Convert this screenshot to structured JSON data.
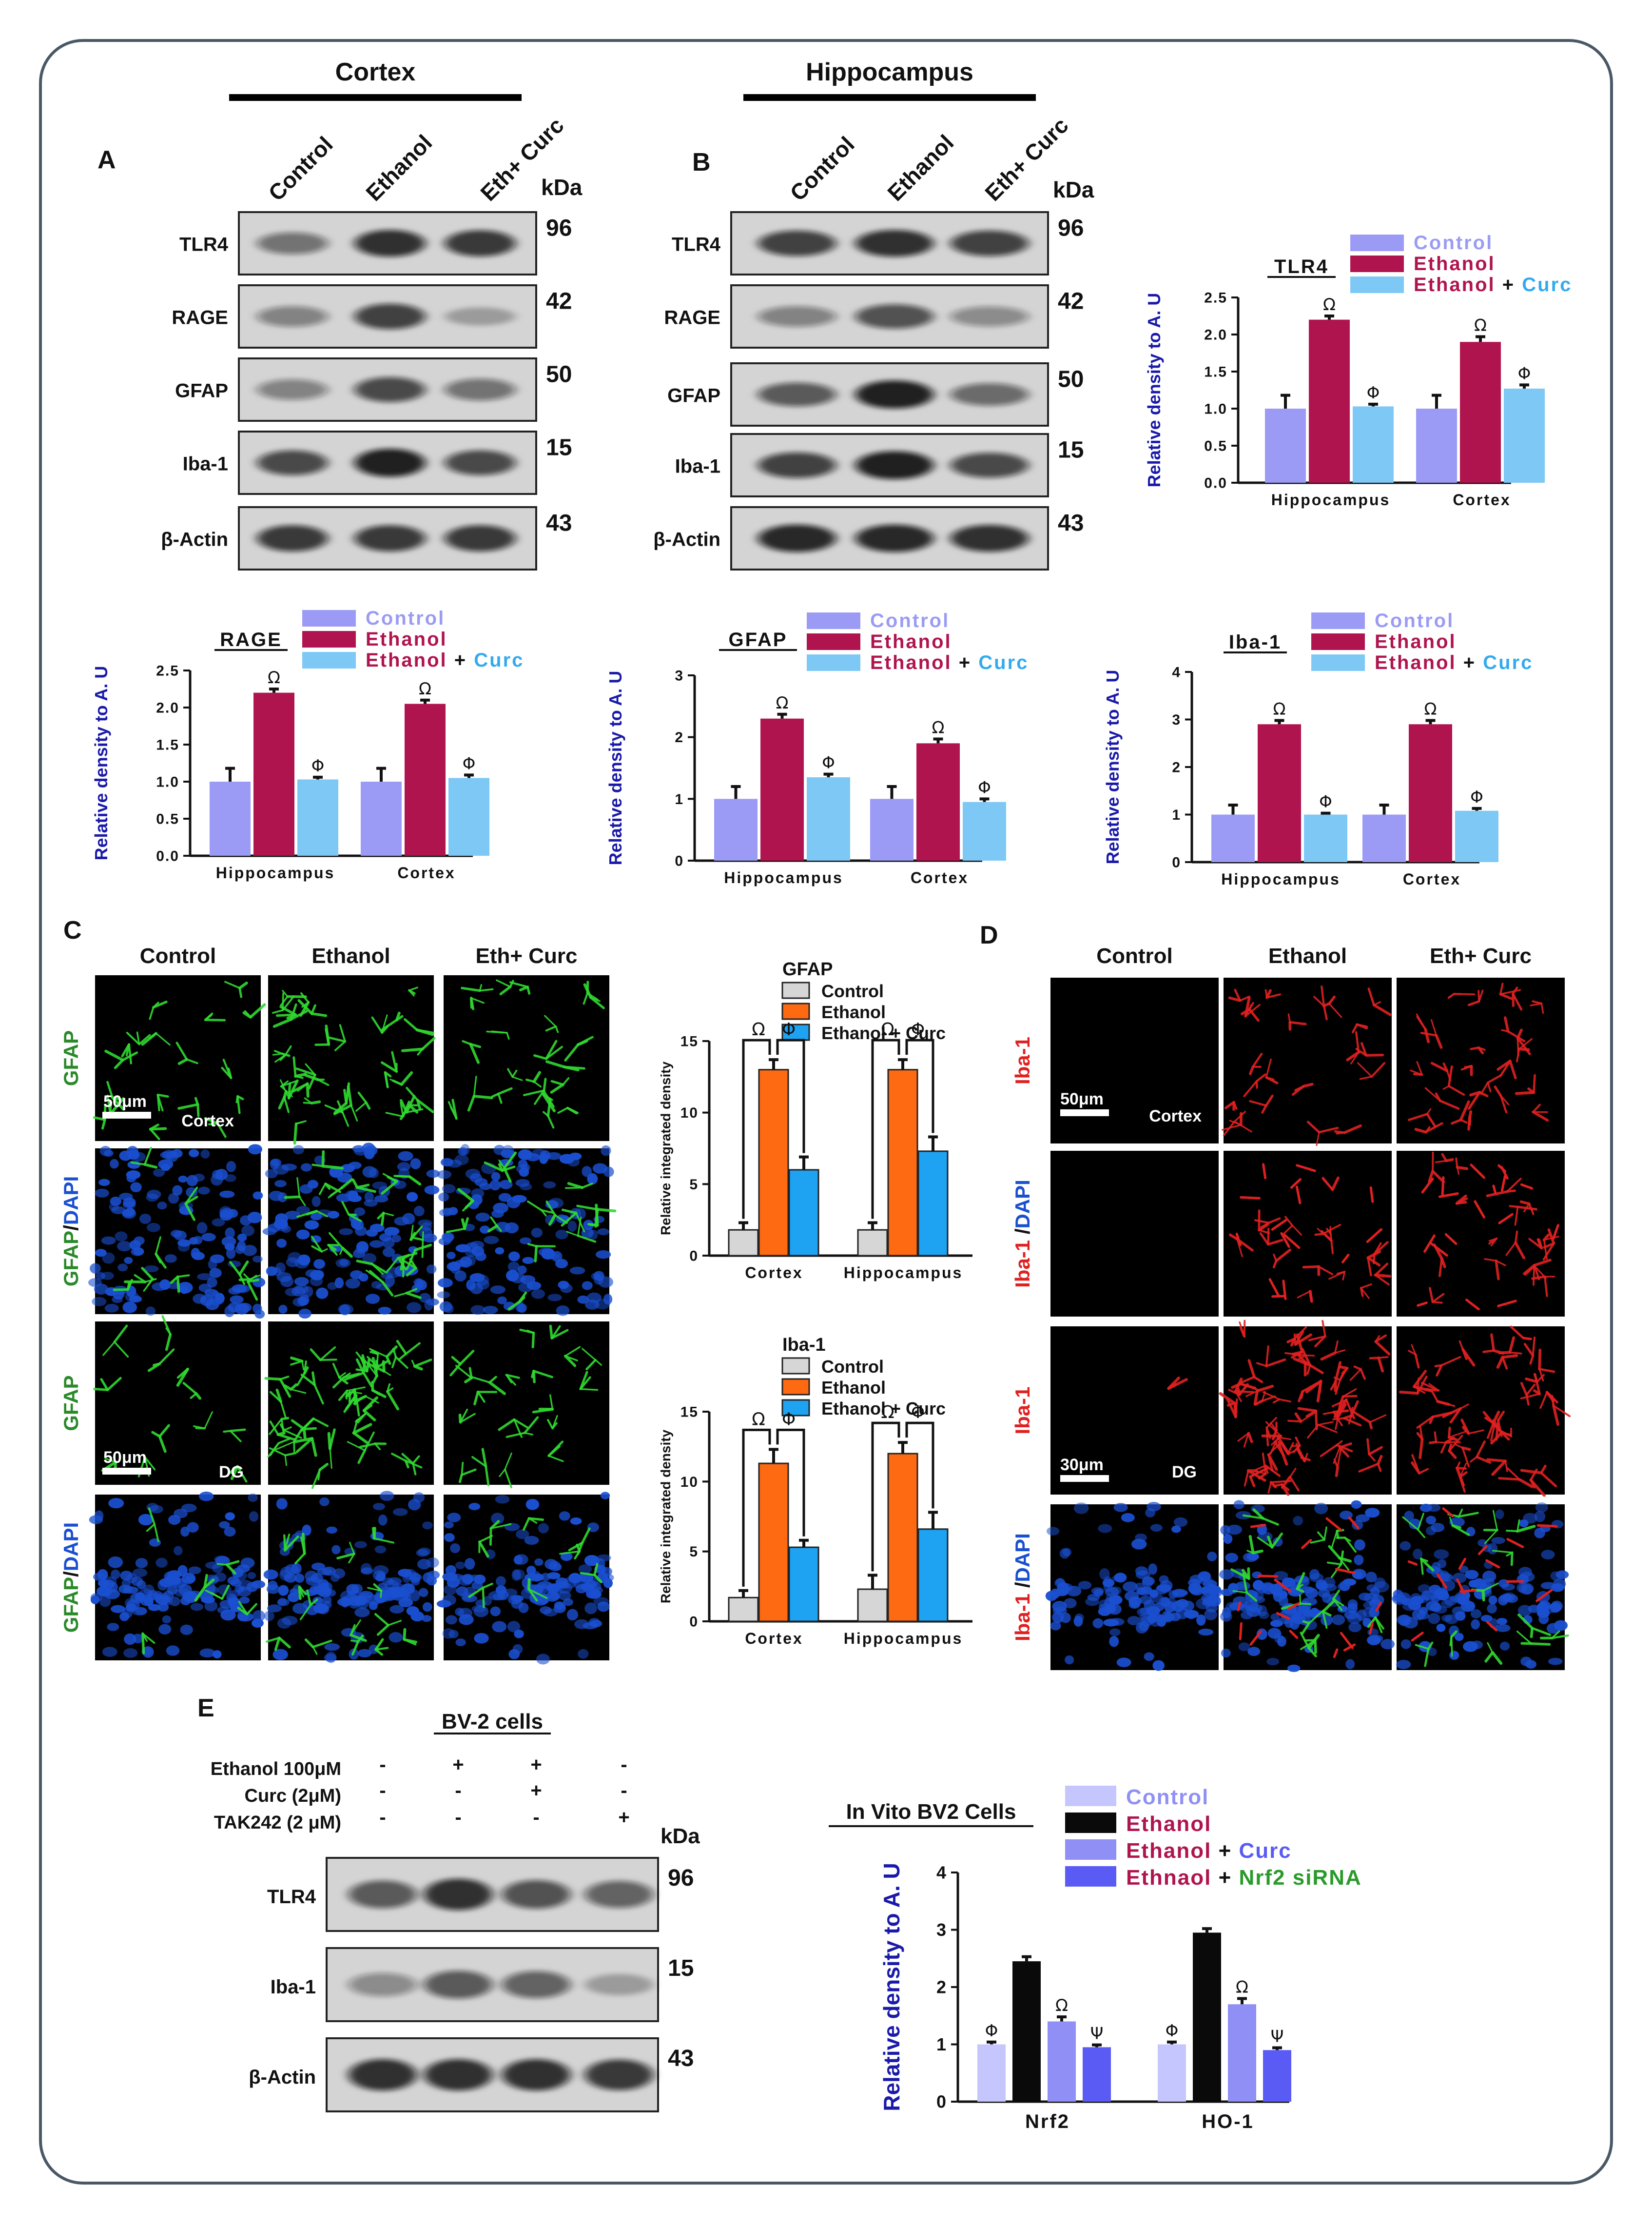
{
  "headers": {
    "cortex": "Cortex",
    "hippocampus": "Hippocampus"
  },
  "panel_letters": {
    "A": "A",
    "B": "B",
    "C": "C",
    "D": "D",
    "E": "E"
  },
  "blot_common": {
    "lanes": [
      "Control",
      "Ethanol",
      "Eth+ Curc"
    ],
    "kda_label": "kDa",
    "rows": [
      "TLR4",
      "RAGE",
      "GFAP",
      "Iba-1",
      "β-Actin"
    ],
    "kda": [
      "96",
      "42",
      "50",
      "15",
      "43"
    ]
  },
  "blot_A": {
    "intensity": [
      [
        0.45,
        0.85,
        0.8
      ],
      [
        0.35,
        0.75,
        0.15
      ],
      [
        0.35,
        0.7,
        0.45
      ],
      [
        0.7,
        0.95,
        0.7
      ],
      [
        0.8,
        0.8,
        0.8
      ]
    ]
  },
  "blot_B": {
    "intensity": [
      [
        0.75,
        0.85,
        0.75
      ],
      [
        0.35,
        0.65,
        0.3
      ],
      [
        0.6,
        0.95,
        0.5
      ],
      [
        0.75,
        0.95,
        0.7
      ],
      [
        0.9,
        0.9,
        0.85
      ]
    ]
  },
  "blot_E": {
    "title": "BV-2 cells",
    "conditions": [
      {
        "label": "Ethanol 100μM",
        "marks": [
          "-",
          "+",
          "+",
          "-"
        ]
      },
      {
        "label": "Curc (2μM)",
        "marks": [
          "-",
          "-",
          "+",
          "-"
        ]
      },
      {
        "label": "TAK242 (2 μM)",
        "marks": [
          "-",
          "-",
          "-",
          "+"
        ]
      }
    ],
    "kda_label": "kDa",
    "rows": [
      "TLR4",
      "Iba-1",
      "β-Actin"
    ],
    "kda": [
      "96",
      "15",
      "43"
    ],
    "intensity": [
      [
        0.6,
        0.85,
        0.65,
        0.55
      ],
      [
        0.3,
        0.6,
        0.55,
        0.15
      ],
      [
        0.85,
        0.85,
        0.85,
        0.8
      ]
    ]
  },
  "legend3": {
    "control": "Control",
    "ethanol": "Ethanol",
    "ethanol_plus": "Ethanol",
    "plus": "+",
    "curc": "Curc"
  },
  "colors": {
    "control": "#9b9bf5",
    "ethanol": "#b0144e",
    "curc": "#7ec8f5",
    "curc_text": "#33aaee",
    "gfap_green": "#2a8a2a",
    "iba_red": "#e02020",
    "dapi_blue": "#1a4fd0",
    "axis_blue": "#1a1aaa",
    "if_control": "#d6d6d6",
    "if_ethanol": "#fd6a12",
    "if_curc": "#1ea2f2",
    "e_control": "#c6c6ff",
    "e_ethanol": "#0a0a0a",
    "e_curc": "#8f8ff6",
    "e_sirna": "#5a5af5",
    "e_sirna_text": "#2a9a2a"
  },
  "chart_data": [
    {
      "id": "tlr4",
      "type": "bar",
      "title": "TLR4",
      "ylabel": "Relative density to A. U",
      "categories": [
        "Hippocampus",
        "Cortex"
      ],
      "ylim": [
        0,
        2.5
      ],
      "yticks": [
        "0.0",
        "0.5",
        "1.0",
        "1.5",
        "2.0",
        "2.5"
      ],
      "series": [
        {
          "name": "Control",
          "values": [
            1.0,
            1.0
          ],
          "err": [
            0.18,
            0.18
          ],
          "marks": [
            "",
            ""
          ]
        },
        {
          "name": "Ethanol",
          "values": [
            2.2,
            1.9
          ],
          "err": [
            0.05,
            0.07
          ],
          "marks": [
            "Ω",
            "Ω"
          ]
        },
        {
          "name": "Ethanol + Curc",
          "values": [
            1.03,
            1.27
          ],
          "err": [
            0.03,
            0.05
          ],
          "marks": [
            "Φ",
            "Φ"
          ]
        }
      ]
    },
    {
      "id": "rage",
      "type": "bar",
      "title": "RAGE",
      "ylabel": "Relative density to A. U",
      "categories": [
        "Hippocampus",
        "Cortex"
      ],
      "ylim": [
        0,
        2.5
      ],
      "yticks": [
        "0.0",
        "0.5",
        "1.0",
        "1.5",
        "2.0",
        "2.5"
      ],
      "series": [
        {
          "name": "Control",
          "values": [
            1.0,
            1.0
          ],
          "err": [
            0.18,
            0.18
          ],
          "marks": [
            "",
            ""
          ]
        },
        {
          "name": "Ethanol",
          "values": [
            2.2,
            2.05
          ],
          "err": [
            0.05,
            0.05
          ],
          "marks": [
            "Ω",
            "Ω"
          ]
        },
        {
          "name": "Ethanol + Curc",
          "values": [
            1.03,
            1.05
          ],
          "err": [
            0.03,
            0.04
          ],
          "marks": [
            "Φ",
            "Φ"
          ]
        }
      ]
    },
    {
      "id": "gfap",
      "type": "bar",
      "title": "GFAP",
      "ylabel": "Relative density to A. U",
      "categories": [
        "Hippocampus",
        "Cortex"
      ],
      "ylim": [
        0,
        3
      ],
      "yticks": [
        "0",
        "1",
        "2",
        "3"
      ],
      "series": [
        {
          "name": "Control",
          "values": [
            1.0,
            1.0
          ],
          "err": [
            0.2,
            0.2
          ],
          "marks": [
            "",
            ""
          ]
        },
        {
          "name": "Ethanol",
          "values": [
            2.3,
            1.9
          ],
          "err": [
            0.07,
            0.07
          ],
          "marks": [
            "Ω",
            "Ω"
          ]
        },
        {
          "name": "Ethanol + Curc",
          "values": [
            1.35,
            0.95
          ],
          "err": [
            0.05,
            0.05
          ],
          "marks": [
            "Φ",
            "Φ"
          ]
        }
      ]
    },
    {
      "id": "iba1",
      "type": "bar",
      "title": "Iba-1",
      "ylabel": "Relative density to A. U",
      "categories": [
        "Hippocampus",
        "Cortex"
      ],
      "ylim": [
        0,
        4
      ],
      "yticks": [
        "0",
        "1",
        "2",
        "3",
        "4"
      ],
      "series": [
        {
          "name": "Control",
          "values": [
            1.0,
            1.0
          ],
          "err": [
            0.2,
            0.2
          ],
          "marks": [
            "",
            ""
          ]
        },
        {
          "name": "Ethanol",
          "values": [
            2.9,
            2.9
          ],
          "err": [
            0.08,
            0.08
          ],
          "marks": [
            "Ω",
            "Ω"
          ]
        },
        {
          "name": "Ethanol + Curc",
          "values": [
            1.0,
            1.08
          ],
          "err": [
            0.03,
            0.05
          ],
          "marks": [
            "Φ",
            "Φ"
          ]
        }
      ]
    },
    {
      "id": "if_gfap",
      "type": "bar",
      "title": "GFAP",
      "ylabel": "Relative integrated density",
      "categories": [
        "Cortex",
        "Hippocampus"
      ],
      "ylim": [
        0,
        15
      ],
      "yticks": [
        "0",
        "5",
        "10",
        "15"
      ],
      "series": [
        {
          "name": "Control",
          "values": [
            1.8,
            1.8
          ],
          "err": [
            0.5,
            0.5
          ]
        },
        {
          "name": "Ethanol",
          "values": [
            13.0,
            13.0
          ],
          "err": [
            0.7,
            0.7
          ]
        },
        {
          "name": "Ethanol + Curc",
          "values": [
            6.0,
            7.3
          ],
          "err": [
            0.9,
            1.0
          ]
        }
      ],
      "brackets": [
        "Ω",
        "Φ"
      ]
    },
    {
      "id": "if_iba1",
      "type": "bar",
      "title": "Iba-1",
      "ylabel": "Relative integrated density",
      "categories": [
        "Cortex",
        "Hippocampus"
      ],
      "ylim": [
        0,
        15
      ],
      "yticks": [
        "0",
        "5",
        "10",
        "15"
      ],
      "series": [
        {
          "name": "Control",
          "values": [
            1.7,
            2.3
          ],
          "err": [
            0.5,
            1.0
          ]
        },
        {
          "name": "Ethanol",
          "values": [
            11.3,
            12.0
          ],
          "err": [
            1.0,
            0.8
          ]
        },
        {
          "name": "Ethanol + Curc",
          "values": [
            5.3,
            6.6
          ],
          "err": [
            0.5,
            1.2
          ]
        }
      ],
      "brackets": [
        "Ω",
        "Φ"
      ]
    },
    {
      "id": "bv2",
      "type": "bar",
      "title": "In Vito BV2 Cells",
      "ylabel": "Relative density to A. U",
      "categories": [
        "Nrf2",
        "HO-1"
      ],
      "ylim": [
        0,
        4
      ],
      "yticks": [
        "0",
        "1",
        "2",
        "3",
        "4"
      ],
      "series": [
        {
          "name": "Control",
          "values": [
            1.0,
            1.0
          ],
          "err": [
            0.04,
            0.04
          ],
          "marks": [
            "Φ",
            "Φ"
          ]
        },
        {
          "name": "Ethanol",
          "values": [
            2.45,
            2.95
          ],
          "err": [
            0.08,
            0.07
          ],
          "marks": [
            "",
            ""
          ]
        },
        {
          "name": "Ethanol + Curc",
          "values": [
            1.4,
            1.7
          ],
          "err": [
            0.08,
            0.1
          ],
          "marks": [
            "Ω",
            "Ω"
          ]
        },
        {
          "name": "Ethnaol + Nrf2 siRNA",
          "values": [
            0.95,
            0.9
          ],
          "err": [
            0.04,
            0.04
          ],
          "marks": [
            "Ψ",
            "Ψ"
          ]
        }
      ],
      "legend_text": [
        "Control",
        "Ethanol",
        "Ethanol",
        "+",
        "Curc",
        "Ethnaol",
        "+",
        "Nrf2 siRNA"
      ]
    }
  ],
  "micro_C": {
    "columns": [
      "Control",
      "Ethanol",
      "Eth+ Curc"
    ],
    "row_labels": [
      [
        "GFAP"
      ],
      [
        "GFAP",
        "/",
        "DAPI"
      ],
      [
        "GFAP"
      ],
      [
        "GFAP",
        "/",
        "DAPI"
      ]
    ],
    "scalebars": [
      "50μm",
      "50μm"
    ],
    "region_labels": [
      "Cortex",
      "DG"
    ]
  },
  "micro_D": {
    "columns": [
      "Control",
      "Ethanol",
      "Eth+ Curc"
    ],
    "row_labels": [
      [
        "Iba-1"
      ],
      [
        "Iba-1",
        " /",
        "DAPI"
      ],
      [
        "Iba-1"
      ],
      [
        "Iba-1",
        " /",
        "DAPI"
      ]
    ],
    "scalebars": [
      "50μm",
      "30μm"
    ],
    "region_labels": [
      "Cortex",
      "DG"
    ]
  }
}
